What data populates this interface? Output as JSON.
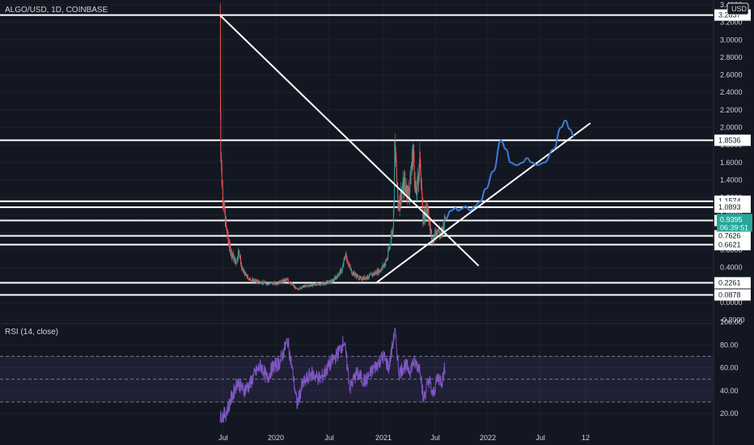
{
  "header": {
    "title": "ALGO/USD, 1D, COINBASE",
    "currency": "USD"
  },
  "rsi_label": "RSI (14, close)",
  "colors": {
    "bg": "#131722",
    "grid": "#1e222d",
    "up": "#26a69a",
    "down": "#ef5350",
    "rsi": "#7e57c2",
    "projection": "#3d7fd6",
    "current": "#26a69a"
  },
  "current_price": {
    "value": "0.9395",
    "countdown": "06:39:51"
  },
  "chart_data": [
    {
      "type": "candlestick",
      "title": "ALGO/USD, 1D, COINBASE",
      "y_ticks": [
        "3.4000",
        "3.2000",
        "3.0000",
        "2.8000",
        "2.6000",
        "2.4000",
        "2.2000",
        "2.0000",
        "1.8000",
        "1.6000",
        "1.4000",
        "1.2000",
        "1.0000",
        "0.8000",
        "0.6000",
        "0.4000",
        "0.2000",
        "0.0000",
        "-0.2000"
      ],
      "x_ticks": [
        "Jul",
        "2020",
        "Jul",
        "2021",
        "Jul",
        "2022",
        "Jul",
        "12"
      ],
      "ylim": [
        -0.2,
        3.45
      ],
      "grid": true,
      "horizontal_levels": [
        "3.2837",
        "1.8536",
        "1.1574",
        "1.0893",
        "0.9376",
        "0.7626",
        "0.6621",
        "0.2261",
        "0.0878"
      ],
      "price_path": [
        {
          "x": "2019-06-20",
          "y": 3.28
        },
        {
          "x": "2019-06-21",
          "y": 2.4
        },
        {
          "x": "2019-06-23",
          "y": 1.7
        },
        {
          "x": "2019-06-28",
          "y": 1.3
        },
        {
          "x": "2019-07-05",
          "y": 1.05
        },
        {
          "x": "2019-07-12",
          "y": 0.85
        },
        {
          "x": "2019-07-22",
          "y": 0.65
        },
        {
          "x": "2019-08-01",
          "y": 0.55
        },
        {
          "x": "2019-08-15",
          "y": 0.45
        },
        {
          "x": "2019-08-25",
          "y": 0.6
        },
        {
          "x": "2019-09-05",
          "y": 0.38
        },
        {
          "x": "2019-09-20",
          "y": 0.3
        },
        {
          "x": "2019-10-05",
          "y": 0.26
        },
        {
          "x": "2019-11-01",
          "y": 0.24
        },
        {
          "x": "2019-12-01",
          "y": 0.22
        },
        {
          "x": "2020-01-01",
          "y": 0.22
        },
        {
          "x": "2020-02-10",
          "y": 0.26
        },
        {
          "x": "2020-03-13",
          "y": 0.15
        },
        {
          "x": "2020-04-01",
          "y": 0.18
        },
        {
          "x": "2020-05-01",
          "y": 0.2
        },
        {
          "x": "2020-06-15",
          "y": 0.22
        },
        {
          "x": "2020-07-15",
          "y": 0.25
        },
        {
          "x": "2020-08-15",
          "y": 0.38
        },
        {
          "x": "2020-08-25",
          "y": 0.55
        },
        {
          "x": "2020-09-15",
          "y": 0.35
        },
        {
          "x": "2020-10-15",
          "y": 0.27
        },
        {
          "x": "2020-11-15",
          "y": 0.3
        },
        {
          "x": "2020-12-25",
          "y": 0.38
        },
        {
          "x": "2021-01-15",
          "y": 0.5
        },
        {
          "x": "2021-02-05",
          "y": 0.9
        },
        {
          "x": "2021-02-10",
          "y": 1.8
        },
        {
          "x": "2021-02-22",
          "y": 1.1
        },
        {
          "x": "2021-03-01",
          "y": 1.2
        },
        {
          "x": "2021-03-15",
          "y": 1.35
        },
        {
          "x": "2021-04-01",
          "y": 1.25
        },
        {
          "x": "2021-04-15",
          "y": 1.75
        },
        {
          "x": "2021-04-25",
          "y": 1.2
        },
        {
          "x": "2021-05-10",
          "y": 1.65
        },
        {
          "x": "2021-05-19",
          "y": 0.95
        },
        {
          "x": "2021-06-01",
          "y": 1.1
        },
        {
          "x": "2021-06-22",
          "y": 0.7
        },
        {
          "x": "2021-07-10",
          "y": 0.85
        },
        {
          "x": "2021-07-20",
          "y": 0.75
        },
        {
          "x": "2021-08-05",
          "y": 0.95
        }
      ],
      "projection_path": [
        {
          "x": "2021-08-05",
          "y": 0.95
        },
        {
          "x": "2021-08-25",
          "y": 1.05
        },
        {
          "x": "2021-09-10",
          "y": 1.08
        },
        {
          "x": "2021-09-20",
          "y": 1.05
        },
        {
          "x": "2021-10-01",
          "y": 1.07
        },
        {
          "x": "2021-10-15",
          "y": 1.1
        },
        {
          "x": "2021-11-01",
          "y": 1.05
        },
        {
          "x": "2021-11-15",
          "y": 1.1
        },
        {
          "x": "2021-12-05",
          "y": 1.15
        },
        {
          "x": "2021-12-25",
          "y": 1.3
        },
        {
          "x": "2022-01-20",
          "y": 1.5
        },
        {
          "x": "2022-02-15",
          "y": 1.85
        },
        {
          "x": "2022-03-05",
          "y": 1.75
        },
        {
          "x": "2022-03-20",
          "y": 1.6
        },
        {
          "x": "2022-04-10",
          "y": 1.57
        },
        {
          "x": "2022-05-01",
          "y": 1.6
        },
        {
          "x": "2022-05-15",
          "y": 1.65
        },
        {
          "x": "2022-06-01",
          "y": 1.6
        },
        {
          "x": "2022-06-20",
          "y": 1.57
        },
        {
          "x": "2022-07-15",
          "y": 1.6
        },
        {
          "x": "2022-08-15",
          "y": 1.75
        },
        {
          "x": "2022-09-10",
          "y": 2.0
        },
        {
          "x": "2022-09-25",
          "y": 2.08
        },
        {
          "x": "2022-10-10",
          "y": 1.98
        },
        {
          "x": "2022-10-25",
          "y": 1.9
        }
      ],
      "trendlines": [
        {
          "from": {
            "x": "2019-06-20",
            "y": 3.28
          },
          "to": {
            "x": "2021-11-30",
            "y": 0.42
          }
        },
        {
          "from": {
            "x": "2020-12-05",
            "y": 0.22
          },
          "to": {
            "x": "2022-12-20",
            "y": 2.05
          }
        }
      ]
    },
    {
      "type": "line",
      "title": "RSI (14, close)",
      "y_ticks": [
        "100.00",
        "80.00",
        "60.00",
        "40.00",
        "20.00"
      ],
      "ylim": [
        10,
        100
      ],
      "bands": [
        70,
        50,
        30
      ],
      "rsi_path": [
        {
          "x": "2019-06-20",
          "y": 16
        },
        {
          "x": "2019-07-10",
          "y": 20
        },
        {
          "x": "2019-08-01",
          "y": 35
        },
        {
          "x": "2019-08-20",
          "y": 48
        },
        {
          "x": "2019-09-10",
          "y": 40
        },
        {
          "x": "2019-10-01",
          "y": 45
        },
        {
          "x": "2019-10-20",
          "y": 55
        },
        {
          "x": "2019-11-10",
          "y": 62
        },
        {
          "x": "2019-12-01",
          "y": 50
        },
        {
          "x": "2019-12-20",
          "y": 60
        },
        {
          "x": "2020-01-15",
          "y": 65
        },
        {
          "x": "2020-02-10",
          "y": 84
        },
        {
          "x": "2020-02-25",
          "y": 60
        },
        {
          "x": "2020-03-13",
          "y": 28
        },
        {
          "x": "2020-04-01",
          "y": 45
        },
        {
          "x": "2020-05-01",
          "y": 55
        },
        {
          "x": "2020-06-01",
          "y": 50
        },
        {
          "x": "2020-07-01",
          "y": 62
        },
        {
          "x": "2020-08-05",
          "y": 75
        },
        {
          "x": "2020-08-20",
          "y": 84
        },
        {
          "x": "2020-09-10",
          "y": 42
        },
        {
          "x": "2020-10-01",
          "y": 55
        },
        {
          "x": "2020-11-01",
          "y": 48
        },
        {
          "x": "2020-12-01",
          "y": 60
        },
        {
          "x": "2021-01-01",
          "y": 70
        },
        {
          "x": "2021-01-20",
          "y": 60
        },
        {
          "x": "2021-02-10",
          "y": 92
        },
        {
          "x": "2021-02-25",
          "y": 55
        },
        {
          "x": "2021-03-15",
          "y": 62
        },
        {
          "x": "2021-04-05",
          "y": 58
        },
        {
          "x": "2021-04-15",
          "y": 65
        },
        {
          "x": "2021-05-10",
          "y": 60
        },
        {
          "x": "2021-05-20",
          "y": 32
        },
        {
          "x": "2021-06-10",
          "y": 50
        },
        {
          "x": "2021-06-22",
          "y": 35
        },
        {
          "x": "2021-07-10",
          "y": 52
        },
        {
          "x": "2021-07-25",
          "y": 48
        },
        {
          "x": "2021-08-05",
          "y": 62
        }
      ]
    }
  ]
}
